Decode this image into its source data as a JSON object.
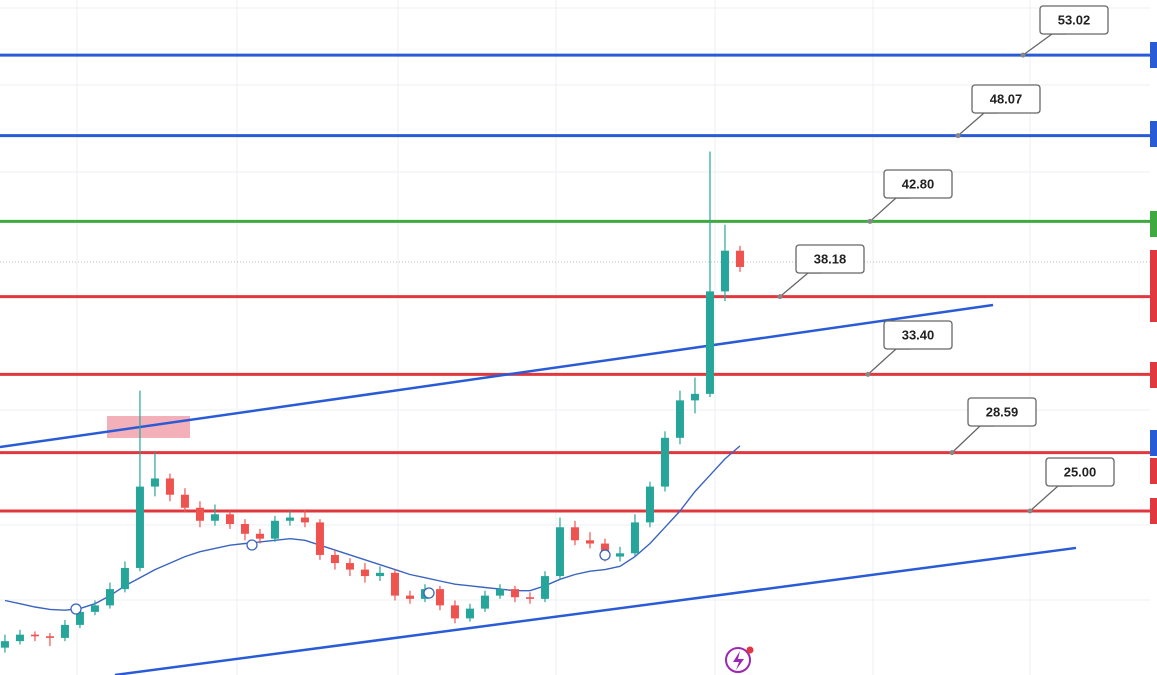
{
  "chart_data": {
    "type": "candlestick",
    "xlim": [
      -0.33,
      76.8
    ],
    "ylim": [
      14.92,
      56.41
    ],
    "x": [
      0,
      1,
      2,
      3,
      4,
      5,
      6,
      7,
      8,
      9,
      10,
      11,
      12,
      13,
      14,
      15,
      16,
      17,
      18,
      19,
      20,
      21,
      22,
      23,
      24,
      25,
      26,
      27,
      28,
      29,
      30,
      31,
      32,
      33,
      34,
      35,
      36,
      37,
      38,
      39,
      40,
      41,
      42,
      43,
      44,
      45,
      46,
      47,
      48,
      49
    ],
    "open": [
      16.6,
      17.0,
      17.4,
      17.3,
      17.2,
      18.0,
      18.8,
      19.2,
      20.2,
      21.5,
      26.5,
      27.0,
      26.0,
      25.2,
      24.4,
      24.8,
      24.2,
      23.6,
      23.3,
      24.4,
      24.6,
      24.3,
      22.3,
      21.8,
      21.4,
      21.0,
      21.2,
      19.8,
      19.6,
      20.2,
      19.2,
      18.4,
      19.0,
      19.8,
      20.2,
      19.7,
      19.6,
      21.0,
      24.0,
      23.2,
      23.0,
      22.2,
      22.4,
      24.3,
      26.5,
      29.5,
      31.8,
      32.2,
      38.5,
      41.0
    ],
    "high": [
      17.4,
      17.7,
      17.6,
      17.5,
      18.3,
      19.1,
      19.5,
      20.6,
      21.9,
      32.4,
      28.6,
      27.3,
      26.4,
      25.6,
      25.4,
      25.0,
      24.5,
      23.9,
      24.7,
      25.0,
      25.1,
      24.5,
      22.6,
      22.1,
      21.8,
      21.6,
      21.4,
      20.1,
      20.5,
      20.4,
      19.5,
      19.3,
      20.1,
      20.5,
      20.4,
      20.0,
      21.3,
      24.6,
      24.4,
      23.7,
      23.3,
      22.8,
      24.8,
      26.8,
      29.9,
      32.4,
      33.2,
      47.1,
      42.6,
      41.3
    ],
    "low": [
      16.3,
      16.8,
      17.0,
      16.7,
      17.0,
      17.8,
      18.6,
      19.0,
      20.0,
      21.3,
      25.9,
      25.6,
      24.9,
      24.0,
      24.1,
      23.9,
      23.2,
      23.0,
      23.1,
      24.1,
      24.0,
      22.0,
      21.4,
      21.0,
      20.6,
      20.7,
      19.5,
      19.3,
      19.4,
      18.9,
      18.1,
      18.2,
      18.8,
      19.6,
      19.4,
      19.3,
      19.4,
      20.8,
      22.9,
      22.7,
      21.9,
      21.9,
      22.2,
      24.0,
      26.2,
      29.1,
      31.0,
      32.0,
      37.9,
      39.7
    ],
    "close": [
      17.0,
      17.4,
      17.3,
      17.2,
      18.0,
      18.8,
      19.2,
      20.2,
      21.5,
      26.5,
      27.0,
      26.0,
      25.2,
      24.4,
      24.8,
      24.2,
      23.6,
      23.3,
      24.4,
      24.6,
      24.3,
      22.3,
      21.8,
      21.4,
      21.0,
      21.2,
      19.8,
      19.6,
      20.2,
      19.2,
      18.4,
      19.0,
      19.8,
      20.2,
      19.7,
      19.6,
      21.0,
      24.0,
      23.2,
      23.0,
      22.2,
      22.4,
      24.3,
      26.5,
      29.5,
      31.8,
      32.2,
      38.5,
      41.0,
      40.0
    ],
    "up_color": "#26a69a",
    "down_color": "#ef5350",
    "ma": {
      "color": "#3a64c0",
      "values": [
        19.5,
        19.3,
        19.1,
        18.95,
        18.9,
        19.0,
        19.3,
        19.8,
        20.4,
        20.9,
        21.4,
        21.8,
        22.2,
        22.5,
        22.7,
        22.9,
        23.0,
        23.1,
        23.2,
        23.3,
        23.2,
        22.9,
        22.6,
        22.3,
        22.0,
        21.7,
        21.4,
        21.1,
        20.9,
        20.7,
        20.5,
        20.4,
        20.3,
        20.2,
        20.1,
        20.1,
        20.4,
        20.8,
        21.1,
        21.3,
        21.4,
        21.6,
        22.2,
        23.0,
        24.0,
        25.0,
        26.2,
        27.2,
        28.2,
        29.0
      ]
    },
    "trendlines": [
      {
        "color": "#2a5bd7",
        "x": [
          -0.33,
          65.87
        ],
        "y": [
          28.93,
          37.66
        ]
      },
      {
        "color": "#2a5bd7",
        "x": [
          7.33,
          71.4
        ],
        "y": [
          14.92,
          22.73
        ]
      }
    ],
    "levels": [
      {
        "value": 53.02,
        "label": "53.02",
        "color": "#2a5bd7"
      },
      {
        "value": 48.07,
        "label": "48.07",
        "color": "#2a5bd7"
      },
      {
        "value": 42.8,
        "label": "42.80",
        "color": "#3faa3f"
      },
      {
        "value": 38.18,
        "label": "38.18",
        "color": "#e0383e"
      },
      {
        "value": 33.4,
        "label": "33.40",
        "color": "#e0383e"
      },
      {
        "value": 28.59,
        "label": "28.59",
        "color": "#e0383e"
      },
      {
        "value": 25.0,
        "label": "25.00",
        "color": "#e0383e"
      }
    ]
  }
}
